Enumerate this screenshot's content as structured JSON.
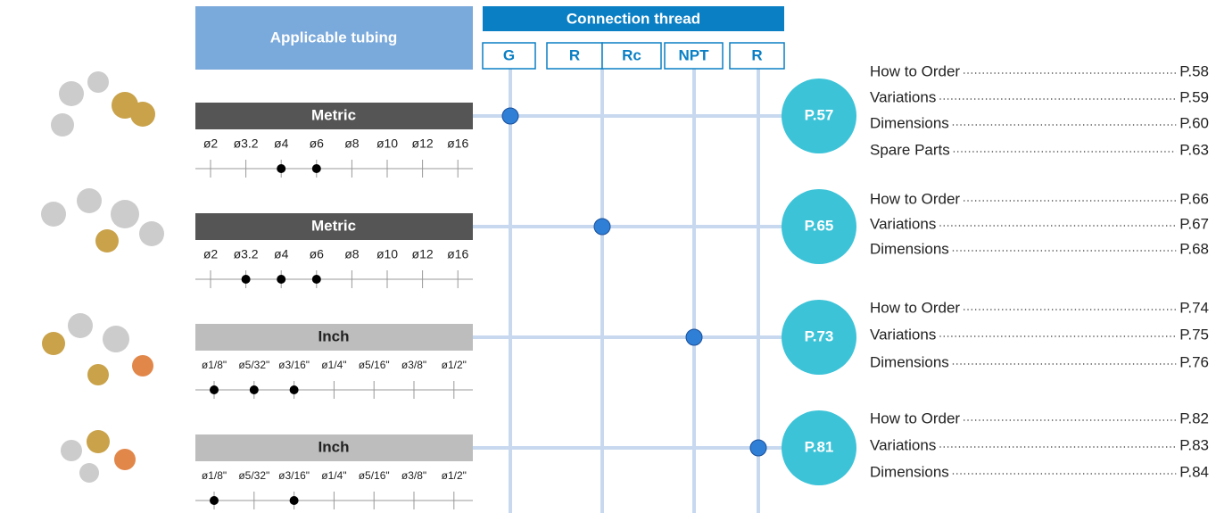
{
  "header": {
    "tubing": "Applicable tubing",
    "thread": "Connection thread",
    "threads": [
      "G",
      "R",
      "Rc",
      "NPT",
      "R"
    ]
  },
  "rows": [
    {
      "standard": "Metric",
      "sizes": [
        "ø2",
        "ø3.2",
        "ø4",
        "ø6",
        "ø8",
        "ø10",
        "ø12",
        "ø16"
      ],
      "available": [
        false,
        false,
        true,
        true,
        false,
        false,
        false,
        false
      ],
      "page": "P.57",
      "links": [
        {
          "label": "How to Order",
          "page": "P.58"
        },
        {
          "label": "Variations",
          "page": "P.59"
        },
        {
          "label": "Dimensions",
          "page": "P.60"
        },
        {
          "label": "Spare Parts",
          "page": "P.63"
        }
      ]
    },
    {
      "standard": "Metric",
      "sizes": [
        "ø2",
        "ø3.2",
        "ø4",
        "ø6",
        "ø8",
        "ø10",
        "ø12",
        "ø16"
      ],
      "available": [
        false,
        true,
        true,
        true,
        false,
        false,
        false,
        false
      ],
      "page": "P.65",
      "links": [
        {
          "label": "How to Order",
          "page": "P.66"
        },
        {
          "label": "Variations",
          "page": "P.67"
        },
        {
          "label": "Dimensions",
          "page": "P.68"
        }
      ]
    },
    {
      "standard": "Inch",
      "sizes": [
        "ø1/8\"",
        "ø5/32\"",
        "ø3/16\"",
        "ø1/4\"",
        "ø5/16\"",
        "ø3/8\"",
        "ø1/2\""
      ],
      "available": [
        true,
        true,
        true,
        false,
        false,
        false,
        false
      ],
      "page": "P.73",
      "links": [
        {
          "label": "How to Order",
          "page": "P.74"
        },
        {
          "label": "Variations",
          "page": "P.75"
        },
        {
          "label": "Dimensions",
          "page": "P.76"
        }
      ]
    },
    {
      "standard": "Inch",
      "sizes": [
        "ø1/8\"",
        "ø5/32\"",
        "ø3/16\"",
        "ø1/4\"",
        "ø5/16\"",
        "ø3/8\"",
        "ø1/2\""
      ],
      "available": [
        true,
        false,
        true,
        false,
        false,
        false,
        false
      ],
      "page": "P.81",
      "links": [
        {
          "label": "How to Order",
          "page": "P.82"
        },
        {
          "label": "Variations",
          "page": "P.83"
        },
        {
          "label": "Dimensions",
          "page": "P.84"
        }
      ]
    }
  ]
}
